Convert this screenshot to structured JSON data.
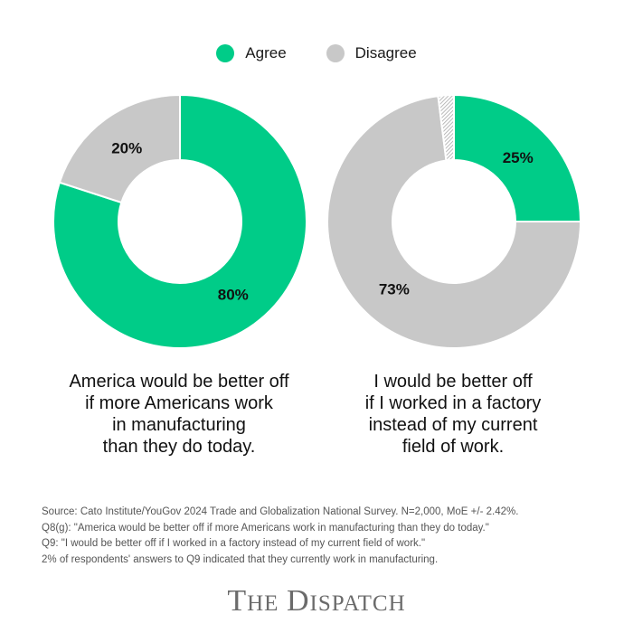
{
  "legend": [
    {
      "label": "Agree",
      "color": "#00cc88"
    },
    {
      "label": "Disagree",
      "color": "#c8c8c8"
    }
  ],
  "chart_data": [
    {
      "type": "pie",
      "donut": true,
      "slices": [
        {
          "name": "Agree",
          "value": 80,
          "label": "80%",
          "color": "#00cc88"
        },
        {
          "name": "Disagree",
          "value": 20,
          "label": "20%",
          "color": "#c8c8c8"
        }
      ],
      "caption": [
        "America would be better off",
        "if more Americans work",
        "in manufacturing",
        "than they do today."
      ]
    },
    {
      "type": "pie",
      "donut": true,
      "slices": [
        {
          "name": "Agree",
          "value": 25,
          "label": "25%",
          "color": "#00cc88"
        },
        {
          "name": "Disagree",
          "value": 73,
          "label": "73%",
          "color": "#c8c8c8"
        },
        {
          "name": "Currently work in manufacturing",
          "value": 2,
          "label": "",
          "color": "#c8c8c8",
          "hatched": true
        }
      ],
      "caption": [
        "I would be better off",
        "if I worked in a factory",
        "instead of my current",
        "field of work."
      ]
    }
  ],
  "notes": [
    "Source: Cato Institute/YouGov 2024 Trade and Globalization National Survey. N=2,000, MoE +/- 2.42%.",
    "Q8(g): \"America would be better off if more Americans work in manufacturing than they do today.\"",
    "Q9: \"I would be better off if I worked in a factory instead of my current field of work.\"",
    "2% of respondents' answers to Q9 indicated that they currently work in manufacturing."
  ],
  "logo": {
    "t": "T",
    "he": "HE",
    "d": "D",
    "ispatch": "ISPATCH"
  }
}
